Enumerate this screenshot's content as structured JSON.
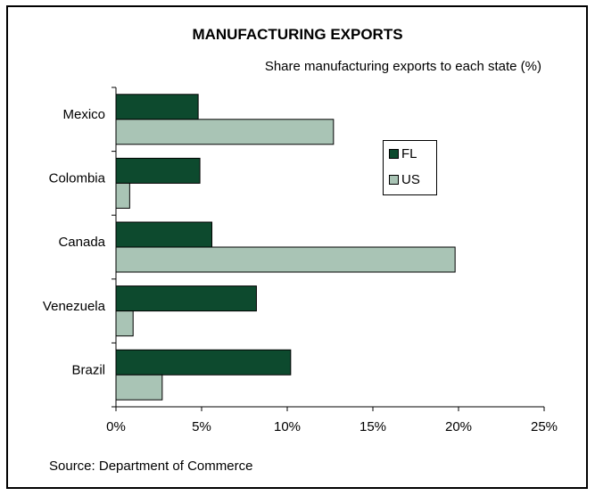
{
  "chart_data": {
    "type": "bar",
    "orientation": "horizontal",
    "title": "MANUFACTURING EXPORTS",
    "subtitle": "Share manufacturing exports to each state (%)",
    "source": "Source: Department of Commerce",
    "categories": [
      "Mexico",
      "Colombia",
      "Canada",
      "Venezuela",
      "Brazil"
    ],
    "series": [
      {
        "name": "FL",
        "values": [
          4.8,
          4.9,
          5.6,
          8.2,
          10.2
        ],
        "color": "#0d4a2e"
      },
      {
        "name": "US",
        "values": [
          12.7,
          0.8,
          19.8,
          1.0,
          2.7
        ],
        "color": "#a9c4b5"
      }
    ],
    "xticks": [
      "0%",
      "5%",
      "10%",
      "15%",
      "20%",
      "25%"
    ],
    "xlim": [
      0,
      25
    ],
    "grid": false,
    "legend_position": "right"
  }
}
